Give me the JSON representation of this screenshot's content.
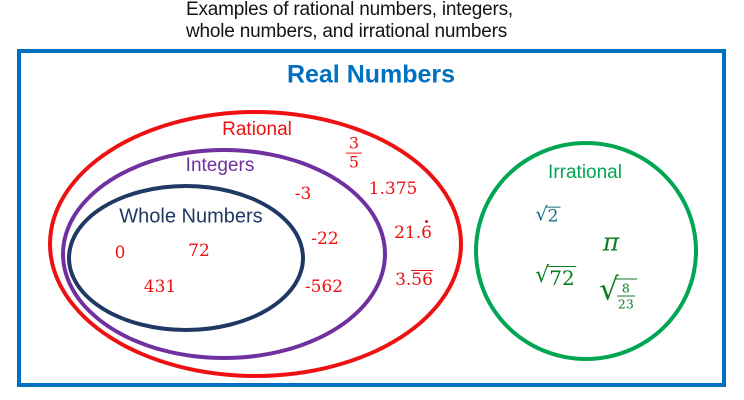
{
  "title": "Examples of rational numbers, integers, whole numbers, and irrational numbers",
  "real_numbers_label": "Real Numbers",
  "sets": {
    "rational_label": "Rational",
    "integers_label": "Integers",
    "whole_label": "Whole Numbers",
    "irrational_label": "Irrational"
  },
  "whole_values": [
    "0",
    "72",
    "431"
  ],
  "integer_values": [
    "-3",
    "-22",
    "-562"
  ],
  "rational_values": {
    "fraction_num": "3",
    "fraction_den": "5",
    "decimal": "1.375",
    "repeating_dot_prefix": "21.",
    "repeating_dot_digit": "6",
    "repeating_bar_prefix": "3.",
    "repeating_bar_digits": "56"
  },
  "irrational_values": {
    "sqrt_symbol": "√",
    "sqrt2_radicand": "2",
    "pi": "π",
    "sqrt72_radicand": "72",
    "nested_num": "8",
    "nested_den": "23"
  },
  "colors": {
    "frame_blue": "#0070C0",
    "title_black": "#141414",
    "rational_red": "#EE1111",
    "integers_purple": "#7030A0",
    "whole_navy": "#1F3864",
    "irrational_green": "#00A651",
    "sqrt2_teal": "#136F83",
    "math_green": "#0A7D20"
  }
}
